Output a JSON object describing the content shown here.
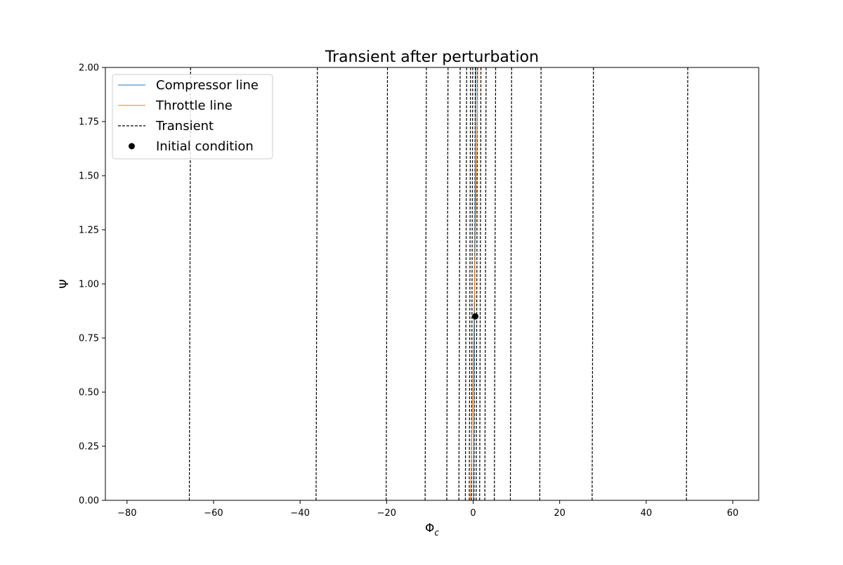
{
  "chart_data": {
    "type": "line",
    "title": "Transient after perturbation",
    "xlabel": "Φ",
    "xlabel_subscript": "c",
    "ylabel": "Ψ",
    "xlim": [
      -85,
      66
    ],
    "ylim": [
      0,
      2
    ],
    "xticks": [
      -80,
      -60,
      -40,
      -20,
      0,
      20,
      40,
      60
    ],
    "xtick_labels": [
      "−80",
      "−60",
      "−40",
      "−20",
      "0",
      "20",
      "40",
      "60"
    ],
    "yticks": [
      0,
      0.25,
      0.5,
      0.75,
      1.0,
      1.25,
      1.5,
      1.75,
      2.0
    ],
    "ytick_labels": [
      "0.00",
      "0.25",
      "0.50",
      "0.75",
      "1.00",
      "1.25",
      "1.50",
      "1.75",
      "2.00"
    ],
    "grid": false,
    "legend_position": "top-left",
    "series": [
      {
        "name": "Compressor line",
        "color": "#1f77b4",
        "style": "solid",
        "points": [
          [
            0.05,
            0.0
          ],
          [
            0.2,
            0.5
          ],
          [
            0.35,
            1.0
          ],
          [
            0.5,
            1.5
          ],
          [
            0.65,
            2.0
          ]
        ]
      },
      {
        "name": "Throttle line",
        "color": "#ff7f0e",
        "style": "solid",
        "points": [
          [
            -0.6,
            0.0
          ],
          [
            0.0,
            0.6
          ],
          [
            0.5,
            1.2
          ],
          [
            0.9,
            1.7
          ],
          [
            1.1,
            2.0
          ]
        ]
      },
      {
        "name": "Transient",
        "color": "#000000",
        "style": "dashed",
        "segments": [
          {
            "x0": -65.6,
            "x1": -65.3
          },
          {
            "x0": -36.3,
            "x1": -36.0
          },
          {
            "x0": -20.1,
            "x1": -19.8
          },
          {
            "x0": -11.1,
            "x1": -10.8
          },
          {
            "x0": -6.1,
            "x1": -5.8
          },
          {
            "x0": -3.3,
            "x1": -3.0
          },
          {
            "x0": -1.8,
            "x1": -1.5
          },
          {
            "x0": -0.9,
            "x1": -0.6
          },
          {
            "x0": -0.4,
            "x1": -0.1
          },
          {
            "x0": 0.2,
            "x1": 0.5
          },
          {
            "x0": 0.7,
            "x1": 1.0
          },
          {
            "x0": 1.5,
            "x1": 1.8
          },
          {
            "x0": 2.7,
            "x1": 3.0
          },
          {
            "x0": 4.9,
            "x1": 5.2
          },
          {
            "x0": 8.6,
            "x1": 8.9
          },
          {
            "x0": 15.4,
            "x1": 15.7
          },
          {
            "x0": 27.5,
            "x1": 27.8
          },
          {
            "x0": 49.3,
            "x1": 49.6
          }
        ]
      },
      {
        "name": "Initial condition",
        "color": "#000000",
        "style": "marker",
        "points": [
          [
            0.5,
            0.85
          ]
        ]
      }
    ]
  }
}
